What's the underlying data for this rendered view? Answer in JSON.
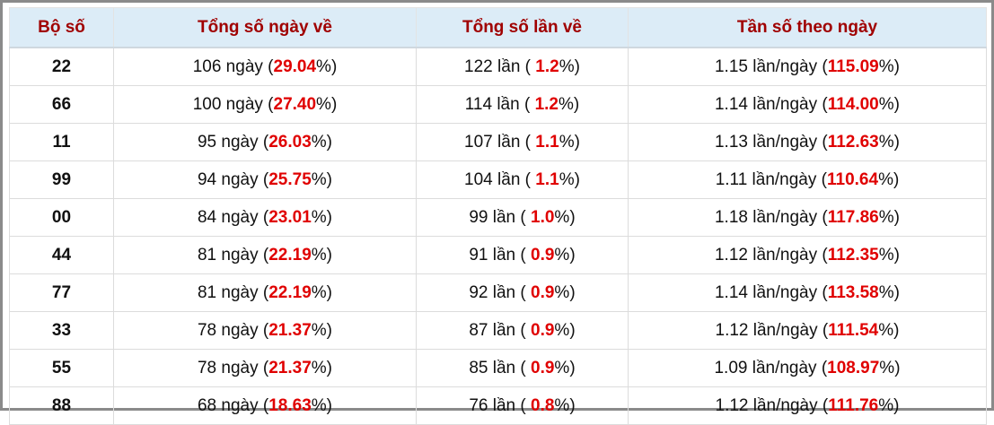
{
  "header": [
    "Bộ số",
    "Tổng số ngày về",
    "Tổng số lần về",
    "Tần số theo ngày"
  ],
  "rows": [
    [
      "22",
      {
        "pre": "106 ngày (",
        "hl": "29.04",
        "post": "%)"
      },
      {
        "pre": "122 lần ( ",
        "hl": "1.2",
        "post": "%)"
      },
      {
        "pre": "1.15 lần/ngày (",
        "hl": "115.09",
        "post": "%)"
      }
    ],
    [
      "66",
      {
        "pre": "100 ngày (",
        "hl": "27.40",
        "post": "%)"
      },
      {
        "pre": "114 lần ( ",
        "hl": "1.2",
        "post": "%)"
      },
      {
        "pre": "1.14 lần/ngày (",
        "hl": "114.00",
        "post": "%)"
      }
    ],
    [
      "11",
      {
        "pre": "95 ngày (",
        "hl": "26.03",
        "post": "%)"
      },
      {
        "pre": "107 lần ( ",
        "hl": "1.1",
        "post": "%)"
      },
      {
        "pre": "1.13 lần/ngày (",
        "hl": "112.63",
        "post": "%)"
      }
    ],
    [
      "99",
      {
        "pre": "94 ngày (",
        "hl": "25.75",
        "post": "%)"
      },
      {
        "pre": "104 lần ( ",
        "hl": "1.1",
        "post": "%)"
      },
      {
        "pre": "1.11 lần/ngày (",
        "hl": "110.64",
        "post": "%)"
      }
    ],
    [
      "00",
      {
        "pre": "84 ngày (",
        "hl": "23.01",
        "post": "%)"
      },
      {
        "pre": "99 lần ( ",
        "hl": "1.0",
        "post": "%)"
      },
      {
        "pre": "1.18 lần/ngày (",
        "hl": "117.86",
        "post": "%)"
      }
    ],
    [
      "44",
      {
        "pre": "81 ngày (",
        "hl": "22.19",
        "post": "%)"
      },
      {
        "pre": "91 lần ( ",
        "hl": "0.9",
        "post": "%)"
      },
      {
        "pre": "1.12 lần/ngày (",
        "hl": "112.35",
        "post": "%)"
      }
    ],
    [
      "77",
      {
        "pre": "81 ngày (",
        "hl": "22.19",
        "post": "%)"
      },
      {
        "pre": "92 lần ( ",
        "hl": "0.9",
        "post": "%)"
      },
      {
        "pre": "1.14 lần/ngày (",
        "hl": "113.58",
        "post": "%)"
      }
    ],
    [
      "33",
      {
        "pre": "78 ngày (",
        "hl": "21.37",
        "post": "%)"
      },
      {
        "pre": "87 lần ( ",
        "hl": "0.9",
        "post": "%)"
      },
      {
        "pre": "1.12 lần/ngày (",
        "hl": "111.54",
        "post": "%)"
      }
    ],
    [
      "55",
      {
        "pre": "78 ngày (",
        "hl": "21.37",
        "post": "%)"
      },
      {
        "pre": "85 lần ( ",
        "hl": "0.9",
        "post": "%)"
      },
      {
        "pre": "1.09 lần/ngày (",
        "hl": "108.97",
        "post": "%)"
      }
    ],
    [
      "88",
      {
        "pre": "68 ngày (",
        "hl": "18.63",
        "post": "%)"
      },
      {
        "pre": "76 lần ( ",
        "hl": "0.8",
        "post": "%)"
      },
      {
        "pre": "1.12 lần/ngày (",
        "hl": "111.76",
        "post": "%)"
      }
    ]
  ]
}
